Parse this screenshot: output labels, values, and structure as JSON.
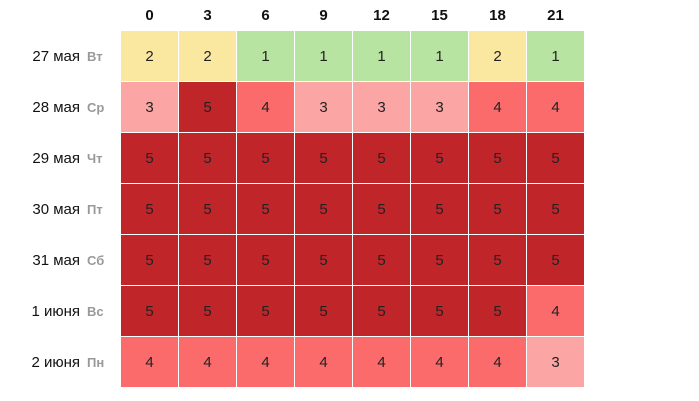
{
  "chart_data": {
    "type": "heatmap",
    "title": "",
    "xlabel": "",
    "ylabel": "",
    "x": [
      "0",
      "3",
      "6",
      "9",
      "12",
      "15",
      "18",
      "21"
    ],
    "rows": [
      {
        "date": "27 мая",
        "weekday": "Вт",
        "values": [
          2,
          2,
          1,
          1,
          1,
          1,
          2,
          1
        ]
      },
      {
        "date": "28 мая",
        "weekday": "Ср",
        "values": [
          3,
          5,
          4,
          3,
          3,
          3,
          4,
          4
        ]
      },
      {
        "date": "29 мая",
        "weekday": "Чт",
        "values": [
          5,
          5,
          5,
          5,
          5,
          5,
          5,
          5
        ]
      },
      {
        "date": "30 мая",
        "weekday": "Пт",
        "values": [
          5,
          5,
          5,
          5,
          5,
          5,
          5,
          5
        ]
      },
      {
        "date": "31 мая",
        "weekday": "Сб",
        "values": [
          5,
          5,
          5,
          5,
          5,
          5,
          5,
          5
        ]
      },
      {
        "date": "1 июня",
        "weekday": "Вс",
        "values": [
          5,
          5,
          5,
          5,
          5,
          5,
          5,
          4
        ]
      },
      {
        "date": "2 июня",
        "weekday": "Пн",
        "values": [
          4,
          4,
          4,
          4,
          4,
          4,
          4,
          3
        ]
      }
    ],
    "level_colors": {
      "1": "#b7e4a0",
      "2": "#fae8a0",
      "3": "#fca5a5",
      "4": "#fb6b6b",
      "5": "#c0252a"
    },
    "grid_color": "#ffffff"
  }
}
